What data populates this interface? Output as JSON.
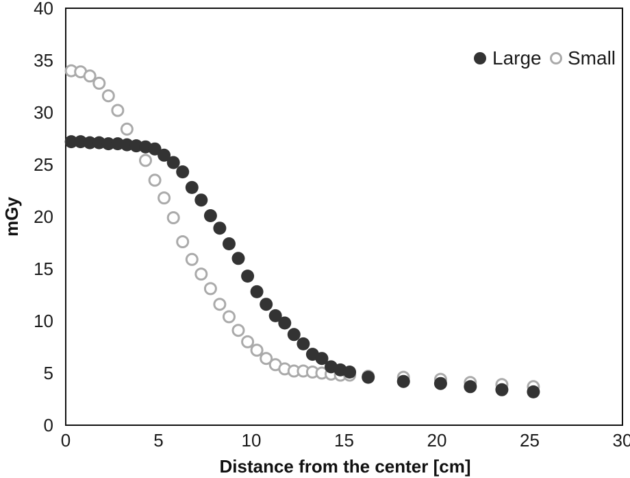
{
  "chart_data": {
    "type": "scatter",
    "title": "",
    "xlabel": "Distance from the center [cm]",
    "ylabel": "mGy",
    "xlim": [
      0,
      30
    ],
    "ylim": [
      0,
      40
    ],
    "x_ticks": [
      "0",
      "5",
      "10",
      "15",
      "20",
      "25",
      "30"
    ],
    "y_ticks": [
      "0",
      "5",
      "10",
      "15",
      "20",
      "25",
      "30",
      "35",
      "40"
    ],
    "grid": false,
    "legend_position": "top-right",
    "series": [
      {
        "name": "Large",
        "marker": "filled-circle",
        "color": "#333333",
        "points": [
          [
            0.3,
            27.2
          ],
          [
            0.8,
            27.2
          ],
          [
            1.3,
            27.1
          ],
          [
            1.8,
            27.1
          ],
          [
            2.3,
            27.0
          ],
          [
            2.8,
            27.0
          ],
          [
            3.3,
            26.9
          ],
          [
            3.8,
            26.8
          ],
          [
            4.3,
            26.7
          ],
          [
            4.8,
            26.5
          ],
          [
            5.3,
            25.9
          ],
          [
            5.8,
            25.2
          ],
          [
            6.3,
            24.3
          ],
          [
            6.8,
            22.8
          ],
          [
            7.3,
            21.6
          ],
          [
            7.8,
            20.1
          ],
          [
            8.3,
            18.9
          ],
          [
            8.8,
            17.4
          ],
          [
            9.3,
            16.0
          ],
          [
            9.8,
            14.3
          ],
          [
            10.3,
            12.8
          ],
          [
            10.8,
            11.6
          ],
          [
            11.3,
            10.5
          ],
          [
            11.8,
            9.8
          ],
          [
            12.3,
            8.7
          ],
          [
            12.8,
            7.8
          ],
          [
            13.3,
            6.8
          ],
          [
            13.8,
            6.4
          ],
          [
            14.3,
            5.6
          ],
          [
            14.8,
            5.3
          ],
          [
            15.3,
            5.1
          ],
          [
            16.3,
            4.6
          ],
          [
            18.2,
            4.2
          ],
          [
            20.2,
            4.0
          ],
          [
            21.8,
            3.7
          ],
          [
            23.5,
            3.4
          ],
          [
            25.2,
            3.2
          ]
        ]
      },
      {
        "name": "Small",
        "marker": "open-circle",
        "color": "#aaaaaa",
        "points": [
          [
            0.3,
            34.0
          ],
          [
            0.8,
            33.9
          ],
          [
            1.3,
            33.5
          ],
          [
            1.8,
            32.8
          ],
          [
            2.3,
            31.6
          ],
          [
            2.8,
            30.2
          ],
          [
            3.3,
            28.4
          ],
          [
            3.8,
            26.8
          ],
          [
            4.3,
            25.4
          ],
          [
            4.8,
            23.5
          ],
          [
            5.3,
            21.8
          ],
          [
            5.8,
            19.9
          ],
          [
            6.3,
            17.6
          ],
          [
            6.8,
            15.9
          ],
          [
            7.3,
            14.5
          ],
          [
            7.8,
            13.1
          ],
          [
            8.3,
            11.6
          ],
          [
            8.8,
            10.4
          ],
          [
            9.3,
            9.1
          ],
          [
            9.8,
            8.0
          ],
          [
            10.3,
            7.2
          ],
          [
            10.8,
            6.4
          ],
          [
            11.3,
            5.8
          ],
          [
            11.8,
            5.4
          ],
          [
            12.3,
            5.2
          ],
          [
            12.8,
            5.2
          ],
          [
            13.3,
            5.1
          ],
          [
            13.8,
            5.0
          ],
          [
            14.3,
            4.9
          ],
          [
            14.8,
            4.8
          ],
          [
            15.3,
            4.8
          ],
          [
            16.3,
            4.7
          ],
          [
            18.2,
            4.6
          ],
          [
            20.2,
            4.4
          ],
          [
            21.8,
            4.1
          ],
          [
            23.5,
            3.9
          ],
          [
            25.2,
            3.7
          ]
        ]
      }
    ]
  }
}
